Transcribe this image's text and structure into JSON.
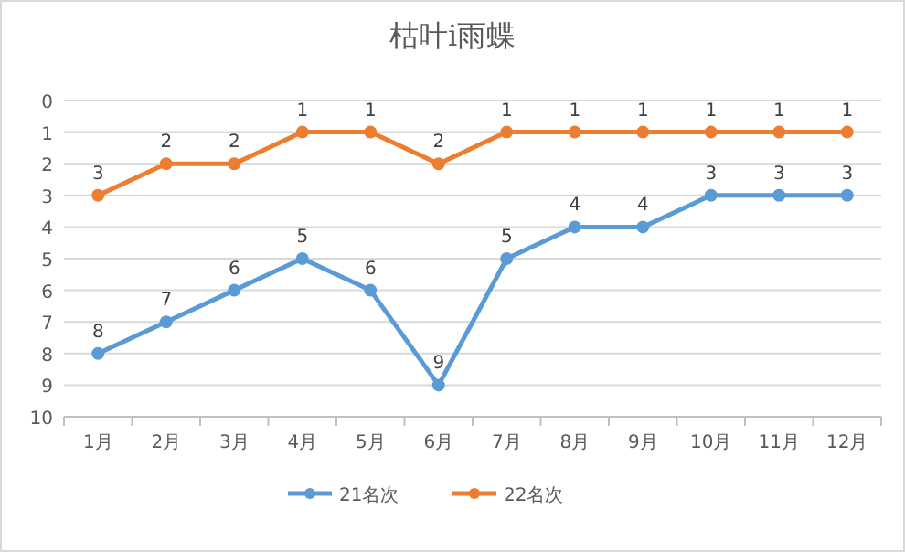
{
  "chart_data": {
    "type": "line",
    "title": "枯叶i雨蝶",
    "categories": [
      "1月",
      "2月",
      "3月",
      "4月",
      "5月",
      "6月",
      "7月",
      "8月",
      "9月",
      "10月",
      "11月",
      "12月"
    ],
    "series": [
      {
        "name": "21名次",
        "color": "#5b9bd5",
        "values": [
          8,
          7,
          6,
          5,
          6,
          9,
          5,
          4,
          4,
          3,
          3,
          3
        ]
      },
      {
        "name": "22名次",
        "color": "#ed7d31",
        "values": [
          3,
          2,
          2,
          1,
          1,
          2,
          1,
          1,
          1,
          1,
          1,
          1
        ]
      }
    ],
    "ylim": [
      10,
      0
    ],
    "yticks": [
      0,
      1,
      2,
      3,
      4,
      5,
      6,
      7,
      8,
      9,
      10
    ],
    "grid": "y",
    "legend": "bottom",
    "marker": "circle",
    "line_style": "solid",
    "data_labels": true
  }
}
